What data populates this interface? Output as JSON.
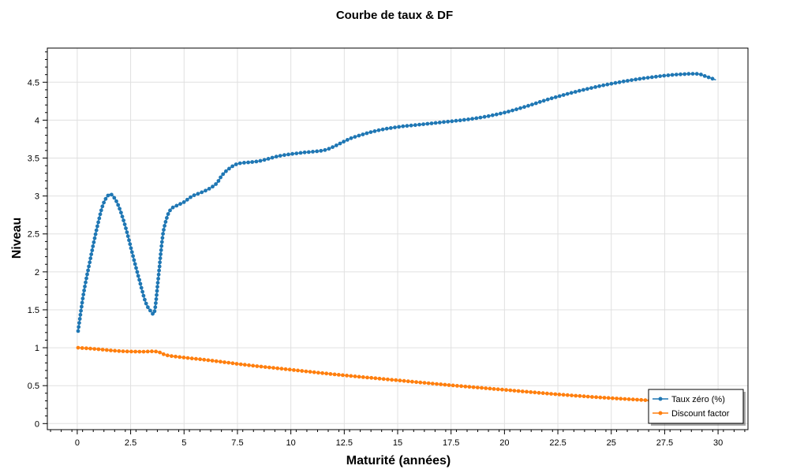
{
  "chart_data": {
    "type": "line",
    "title": "Courbe de taux & DF",
    "xlabel": "Maturité (années)",
    "ylabel": "Niveau",
    "xlim": [
      -1.4,
      31.4
    ],
    "ylim": [
      -0.08,
      4.95
    ],
    "xticks": [
      0,
      2.5,
      5,
      7.5,
      10,
      12.5,
      15,
      17.5,
      20,
      22.5,
      25,
      27.5,
      30
    ],
    "xtick_labels": [
      "0",
      "2.5",
      "5",
      "7.5",
      "10",
      "12.5",
      "15",
      "17.5",
      "20",
      "22.5",
      "25",
      "27.5",
      "30"
    ],
    "yticks": [
      0,
      0.5,
      1,
      1.5,
      2,
      2.5,
      3,
      3.5,
      4,
      4.5
    ],
    "ytick_labels": [
      "0",
      "0.5",
      "1",
      "1.5",
      "2",
      "2.5",
      "3",
      "3.5",
      "4",
      "4.5"
    ],
    "grid": true,
    "legend_position": "bottom-right",
    "series": [
      {
        "name": "Taux zéro (%)",
        "color": "#1f77b4",
        "marker": "circle",
        "points": [
          [
            0.04,
            1.22
          ],
          [
            0.3,
            1.72
          ],
          [
            0.6,
            2.15
          ],
          [
            0.9,
            2.55
          ],
          [
            1.2,
            2.88
          ],
          [
            1.5,
            3.02
          ],
          [
            1.75,
            2.97
          ],
          [
            2.0,
            2.82
          ],
          [
            2.3,
            2.55
          ],
          [
            2.6,
            2.22
          ],
          [
            2.9,
            1.9
          ],
          [
            3.2,
            1.6
          ],
          [
            3.45,
            1.48
          ],
          [
            3.62,
            1.48
          ],
          [
            3.8,
            1.93
          ],
          [
            4.0,
            2.47
          ],
          [
            4.2,
            2.72
          ],
          [
            4.4,
            2.83
          ],
          [
            4.7,
            2.88
          ],
          [
            5.0,
            2.92
          ],
          [
            5.4,
            3.0
          ],
          [
            6.0,
            3.07
          ],
          [
            6.5,
            3.16
          ],
          [
            6.8,
            3.28
          ],
          [
            7.2,
            3.38
          ],
          [
            7.6,
            3.43
          ],
          [
            8.5,
            3.46
          ],
          [
            9.5,
            3.53
          ],
          [
            10.5,
            3.57
          ],
          [
            11.5,
            3.6
          ],
          [
            12.0,
            3.65
          ],
          [
            12.5,
            3.72
          ],
          [
            13.0,
            3.78
          ],
          [
            14.0,
            3.86
          ],
          [
            15.0,
            3.91
          ],
          [
            16.0,
            3.94
          ],
          [
            17.0,
            3.97
          ],
          [
            18.0,
            4.0
          ],
          [
            19.0,
            4.04
          ],
          [
            20.0,
            4.1
          ],
          [
            21.0,
            4.18
          ],
          [
            22.0,
            4.27
          ],
          [
            23.0,
            4.35
          ],
          [
            24.0,
            4.42
          ],
          [
            25.0,
            4.48
          ],
          [
            26.0,
            4.53
          ],
          [
            27.0,
            4.57
          ],
          [
            28.0,
            4.6
          ],
          [
            29.0,
            4.61
          ],
          [
            29.4,
            4.58
          ],
          [
            29.9,
            4.53
          ]
        ]
      },
      {
        "name": "Discount factor",
        "color": "#ff7f0e",
        "marker": "circle",
        "points": [
          [
            0.04,
            1.0
          ],
          [
            1.0,
            0.98
          ],
          [
            2.0,
            0.955
          ],
          [
            3.0,
            0.948
          ],
          [
            3.6,
            0.952
          ],
          [
            3.9,
            0.935
          ],
          [
            4.2,
            0.9
          ],
          [
            5.0,
            0.87
          ],
          [
            6.0,
            0.84
          ],
          [
            7.0,
            0.805
          ],
          [
            8.0,
            0.77
          ],
          [
            10.0,
            0.71
          ],
          [
            12.0,
            0.65
          ],
          [
            15.0,
            0.57
          ],
          [
            17.5,
            0.505
          ],
          [
            20.0,
            0.445
          ],
          [
            22.5,
            0.385
          ],
          [
            25.0,
            0.335
          ],
          [
            27.5,
            0.295
          ],
          [
            29.9,
            0.26
          ]
        ]
      }
    ]
  }
}
